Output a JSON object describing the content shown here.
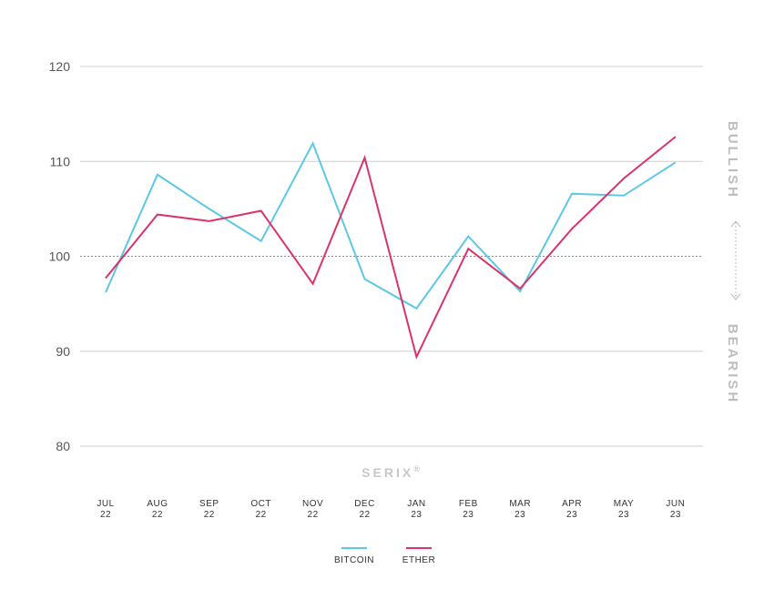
{
  "chart_data": {
    "type": "line",
    "categories": [
      [
        "JUL",
        "22"
      ],
      [
        "AUG",
        "22"
      ],
      [
        "SEP",
        "22"
      ],
      [
        "OCT",
        "22"
      ],
      [
        "NOV",
        "22"
      ],
      [
        "DEC",
        "22"
      ],
      [
        "JAN",
        "23"
      ],
      [
        "FEB",
        "23"
      ],
      [
        "MAR",
        "23"
      ],
      [
        "APR",
        "23"
      ],
      [
        "MAY",
        "23"
      ],
      [
        "JUN",
        "23"
      ]
    ],
    "ylim": [
      80,
      120
    ],
    "yticks": [
      "80",
      "90",
      "100",
      "110",
      "120"
    ],
    "baseline": 100,
    "grid": true,
    "legend_position": "bottom",
    "series": [
      {
        "name": "BITCOIN",
        "color": "#5bc8e6",
        "values": [
          96.2,
          108.6,
          105.0,
          101.6,
          111.9,
          97.6,
          94.5,
          102.1,
          96.3,
          106.6,
          106.4,
          109.9
        ]
      },
      {
        "name": "ETHER",
        "color": "#d9336a",
        "values": [
          97.7,
          104.4,
          103.7,
          104.8,
          97.1,
          110.4,
          89.4,
          100.8,
          96.6,
          102.9,
          108.2,
          112.6
        ]
      }
    ],
    "side_labels": {
      "top": "BULLISH",
      "bottom": "BEARISH"
    },
    "brand": "SERIX",
    "brand_mark": "®"
  }
}
